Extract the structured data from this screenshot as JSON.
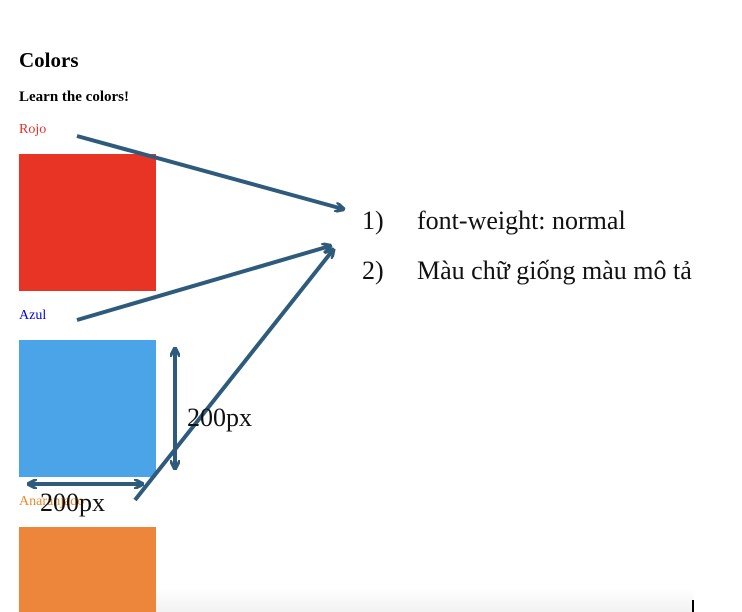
{
  "page": {
    "title": "Colors",
    "subtitle": "Learn the colors!"
  },
  "colors": [
    {
      "label": "Rojo",
      "text_color": "#e53027",
      "swatch_color": "#e83424"
    },
    {
      "label": "Azul",
      "text_color": "#0000ee",
      "swatch_color": "#4ba3e8"
    },
    {
      "label": "Anaranjado",
      "text_color": "#ed8a2c",
      "swatch_color": "#ed853b"
    }
  ],
  "notes": [
    {
      "number": "1)",
      "text": "font-weight: normal"
    },
    {
      "number": "2)",
      "text": "Màu chữ giống màu mô tả"
    }
  ],
  "dimensions": {
    "height_label": "200px",
    "width_label": "200px"
  },
  "annotation_color": "#2e5b7c"
}
